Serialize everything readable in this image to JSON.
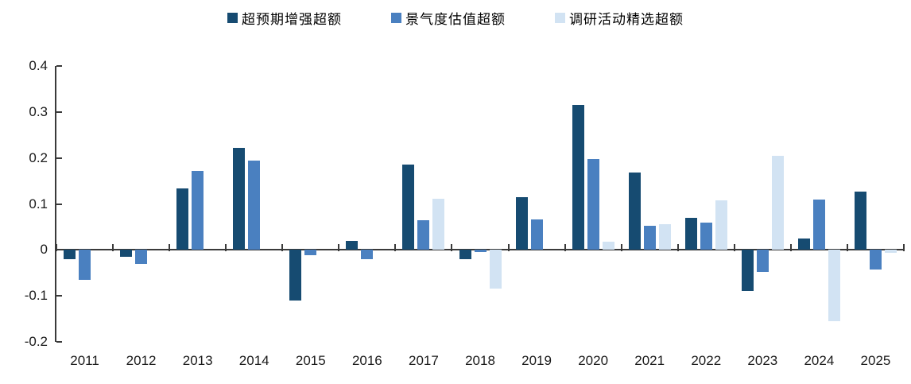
{
  "chart_data": {
    "type": "bar",
    "title": "",
    "xlabel": "",
    "ylabel": "",
    "categories": [
      "2011",
      "2012",
      "2013",
      "2014",
      "2015",
      "2016",
      "2017",
      "2018",
      "2019",
      "2020",
      "2021",
      "2022",
      "2023",
      "2024",
      "2025"
    ],
    "series": [
      {
        "name": "超预期增强超额",
        "color": "#164b71",
        "values": [
          -0.02,
          -0.015,
          0.133,
          0.222,
          -0.11,
          0.02,
          0.185,
          -0.02,
          0.115,
          0.315,
          0.168,
          0.07,
          -0.09,
          0.025,
          0.127
        ]
      },
      {
        "name": "景气度估值超额",
        "color": "#4a80c0",
        "values": [
          -0.065,
          -0.03,
          0.171,
          0.194,
          -0.011,
          -0.02,
          0.064,
          -0.005,
          0.066,
          0.198,
          0.052,
          0.06,
          -0.048,
          0.11,
          -0.042
        ]
      },
      {
        "name": "调研活动精选超额",
        "color": "#d2e3f3",
        "values": [
          null,
          null,
          null,
          null,
          null,
          null,
          0.111,
          -0.085,
          null,
          0.018,
          0.056,
          0.108,
          0.205,
          -0.155,
          -0.006
        ]
      }
    ],
    "y_ticks": [
      0.4,
      0.3,
      0.2,
      0.1,
      0,
      -0.1,
      -0.2
    ],
    "y_tick_labels": [
      "0.4",
      "0.3",
      "0.2",
      "0.1",
      "0",
      "-0.1",
      "-0.2"
    ],
    "ylim": [
      -0.2,
      0.4
    ],
    "grid": false,
    "legend_position": "top"
  },
  "colors": {
    "axis": "#3a3a3a",
    "label_text": "#1a1a1a"
  }
}
